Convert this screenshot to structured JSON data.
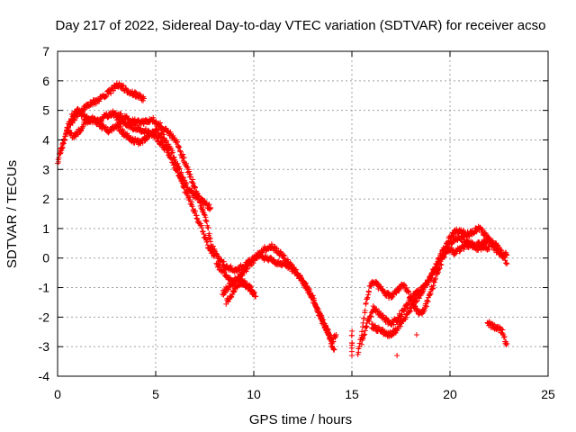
{
  "chart_data": {
    "type": "scatter",
    "title": "Day 217 of 2022, Sidereal Day-to-day VTEC variation (SDTVAR) for receiver acso",
    "xlabel": "GPS time / hours",
    "ylabel": "SDTVAR / TECUs",
    "xlim": [
      0,
      25
    ],
    "ylim": [
      -4,
      7
    ],
    "xticks": [
      0,
      5,
      10,
      15,
      20,
      25
    ],
    "yticks": [
      -4,
      -3,
      -2,
      -1,
      0,
      1,
      2,
      3,
      4,
      5,
      6,
      7
    ],
    "grid": true,
    "marker": "+",
    "series": [
      {
        "name": "SDTVAR",
        "color": "#ff0000",
        "tracks": [
          [
            [
              0.0,
              3.2
            ],
            [
              0.2,
              3.7
            ],
            [
              0.4,
              4.1
            ],
            [
              0.6,
              4.6
            ],
            [
              0.8,
              4.9
            ],
            [
              1.0,
              5.0
            ],
            [
              1.3,
              4.8
            ],
            [
              1.6,
              4.7
            ],
            [
              2.0,
              4.6
            ],
            [
              2.4,
              4.8
            ],
            [
              2.8,
              4.9
            ],
            [
              3.2,
              4.8
            ],
            [
              3.6,
              4.7
            ],
            [
              4.0,
              4.6
            ],
            [
              4.4,
              4.6
            ],
            [
              4.8,
              4.7
            ],
            [
              5.2,
              4.5
            ],
            [
              5.6,
              4.3
            ],
            [
              6.0,
              4.0
            ],
            [
              6.4,
              3.4
            ],
            [
              6.8,
              2.7
            ],
            [
              7.2,
              2.0
            ],
            [
              7.6,
              1.2
            ],
            [
              7.8,
              0.5
            ],
            [
              8.2,
              0.0
            ],
            [
              8.6,
              -0.3
            ],
            [
              9.0,
              -0.4
            ],
            [
              9.4,
              -0.3
            ],
            [
              9.8,
              -0.1
            ],
            [
              10.2,
              0.1
            ],
            [
              10.6,
              0.0
            ],
            [
              11.0,
              -0.1
            ],
            [
              11.4,
              -0.2
            ],
            [
              11.8,
              -0.3
            ],
            [
              12.2,
              -0.5
            ],
            [
              12.6,
              -0.9
            ],
            [
              13.0,
              -1.4
            ],
            [
              13.4,
              -2.0
            ],
            [
              13.8,
              -2.6
            ],
            [
              14.1,
              -3.1
            ]
          ],
          [
            [
              0.1,
              3.5
            ],
            [
              0.3,
              3.9
            ],
            [
              0.5,
              4.3
            ],
            [
              0.8,
              4.7
            ],
            [
              1.1,
              4.9
            ],
            [
              1.5,
              5.2
            ],
            [
              2.0,
              5.3
            ],
            [
              2.4,
              5.5
            ],
            [
              2.8,
              5.7
            ],
            [
              3.0,
              5.9
            ],
            [
              3.3,
              5.8
            ],
            [
              3.7,
              5.6
            ],
            [
              4.1,
              5.5
            ],
            [
              4.4,
              5.4
            ]
          ],
          [
            [
              0.5,
              4.4
            ],
            [
              0.8,
              4.1
            ],
            [
              1.1,
              4.3
            ],
            [
              1.4,
              4.6
            ],
            [
              1.8,
              4.7
            ],
            [
              2.2,
              4.5
            ],
            [
              2.6,
              4.3
            ],
            [
              3.0,
              4.5
            ],
            [
              3.4,
              4.2
            ],
            [
              3.8,
              4.0
            ],
            [
              4.2,
              3.9
            ],
            [
              4.6,
              4.1
            ],
            [
              5.0,
              4.3
            ],
            [
              5.4,
              4.1
            ],
            [
              5.8,
              3.6
            ],
            [
              6.2,
              3.0
            ],
            [
              6.6,
              2.4
            ],
            [
              7.0,
              2.1
            ],
            [
              7.4,
              1.9
            ],
            [
              7.8,
              1.7
            ]
          ],
          [
            [
              3.0,
              4.7
            ],
            [
              3.5,
              4.5
            ],
            [
              4.0,
              4.4
            ],
            [
              4.5,
              4.3
            ],
            [
              5.0,
              4.1
            ],
            [
              5.5,
              3.7
            ],
            [
              5.9,
              3.2
            ],
            [
              6.3,
              2.6
            ],
            [
              6.7,
              2.0
            ],
            [
              7.1,
              1.4
            ],
            [
              7.4,
              0.9
            ],
            [
              7.7,
              0.4
            ],
            [
              8.0,
              0.1
            ]
          ],
          [
            [
              8.1,
              -0.2
            ],
            [
              8.5,
              -0.5
            ],
            [
              8.9,
              -0.8
            ],
            [
              9.3,
              -0.6
            ],
            [
              9.7,
              -0.3
            ],
            [
              10.1,
              0.0
            ],
            [
              10.5,
              0.3
            ],
            [
              10.9,
              0.4
            ],
            [
              11.3,
              0.2
            ],
            [
              11.7,
              -0.1
            ],
            [
              12.1,
              -0.4
            ],
            [
              12.5,
              -0.8
            ],
            [
              12.9,
              -1.2
            ],
            [
              13.3,
              -1.8
            ],
            [
              13.7,
              -2.4
            ],
            [
              14.0,
              -2.9
            ]
          ],
          [
            [
              8.4,
              -1.2
            ],
            [
              8.8,
              -0.9
            ],
            [
              9.2,
              -0.7
            ],
            [
              9.6,
              -0.9
            ],
            [
              10.0,
              -1.2
            ]
          ],
          [
            [
              8.6,
              -1.5
            ],
            [
              9.0,
              -1.1
            ],
            [
              9.4,
              -0.8
            ],
            [
              9.8,
              -1.0
            ],
            [
              10.1,
              -1.3
            ]
          ],
          [
            [
              13.6,
              -2.3
            ],
            [
              13.8,
              -2.5
            ],
            [
              14.0,
              -2.8
            ],
            [
              14.2,
              -2.6
            ]
          ],
          [
            [
              15.0,
              -2.5
            ],
            [
              15.0,
              -2.9
            ],
            [
              15.0,
              -3.3
            ]
          ],
          [
            [
              15.3,
              -3.2
            ],
            [
              15.5,
              -2.6
            ],
            [
              15.7,
              -1.6
            ],
            [
              15.9,
              -1.0
            ],
            [
              16.1,
              -0.8
            ],
            [
              16.4,
              -1.0
            ],
            [
              16.7,
              -1.2
            ],
            [
              17.0,
              -1.3
            ],
            [
              17.3,
              -1.1
            ],
            [
              17.6,
              -0.9
            ],
            [
              17.9,
              -1.2
            ],
            [
              18.2,
              -1.7
            ],
            [
              18.5,
              -1.9
            ],
            [
              18.8,
              -1.6
            ],
            [
              19.1,
              -1.0
            ],
            [
              19.4,
              -0.4
            ],
            [
              19.7,
              0.1
            ],
            [
              20.0,
              0.5
            ],
            [
              20.4,
              0.7
            ],
            [
              20.8,
              0.6
            ],
            [
              21.2,
              0.4
            ],
            [
              21.6,
              0.5
            ],
            [
              22.0,
              0.6
            ],
            [
              22.4,
              0.4
            ],
            [
              22.8,
              0.0
            ],
            [
              22.9,
              -0.2
            ]
          ],
          [
            [
              15.5,
              -2.9
            ],
            [
              15.8,
              -2.2
            ],
            [
              16.1,
              -1.7
            ],
            [
              16.4,
              -1.9
            ],
            [
              16.7,
              -2.1
            ],
            [
              17.0,
              -2.2
            ],
            [
              17.3,
              -2.1
            ],
            [
              17.6,
              -1.8
            ],
            [
              17.9,
              -1.5
            ],
            [
              18.2,
              -1.2
            ],
            [
              18.5,
              -1.1
            ],
            [
              18.8,
              -0.9
            ],
            [
              19.1,
              -0.5
            ],
            [
              19.4,
              -0.1
            ],
            [
              19.7,
              0.3
            ],
            [
              20.0,
              0.7
            ],
            [
              20.3,
              0.9
            ],
            [
              20.6,
              0.9
            ],
            [
              20.9,
              0.8
            ],
            [
              21.2,
              0.9
            ],
            [
              21.5,
              1.0
            ],
            [
              21.8,
              0.8
            ],
            [
              22.1,
              0.5
            ],
            [
              22.4,
              0.2
            ],
            [
              22.7,
              0.1
            ],
            [
              22.9,
              0.1
            ]
          ],
          [
            [
              16.0,
              -2.3
            ],
            [
              16.3,
              -2.4
            ],
            [
              16.6,
              -2.5
            ],
            [
              16.9,
              -2.6
            ],
            [
              17.2,
              -2.5
            ],
            [
              17.5,
              -2.2
            ],
            [
              17.8,
              -1.9
            ],
            [
              18.1,
              -1.6
            ],
            [
              18.4,
              -1.3
            ],
            [
              18.7,
              -1.0
            ],
            [
              19.0,
              -0.7
            ],
            [
              19.3,
              -0.3
            ],
            [
              19.6,
              0.2
            ],
            [
              19.9,
              0.3
            ],
            [
              20.2,
              0.2
            ],
            [
              20.5,
              0.3
            ],
            [
              20.8,
              0.4
            ],
            [
              21.1,
              0.5
            ],
            [
              21.4,
              0.3
            ],
            [
              21.7,
              0.4
            ],
            [
              22.0,
              0.3
            ]
          ],
          [
            [
              17.3,
              -3.3
            ]
          ],
          [
            [
              18.3,
              -2.6
            ]
          ],
          [
            [
              21.9,
              -2.2
            ],
            [
              22.2,
              -2.3
            ],
            [
              22.5,
              -2.4
            ],
            [
              22.7,
              -2.5
            ],
            [
              22.8,
              -2.8
            ],
            [
              22.9,
              -2.9
            ]
          ]
        ]
      }
    ]
  }
}
